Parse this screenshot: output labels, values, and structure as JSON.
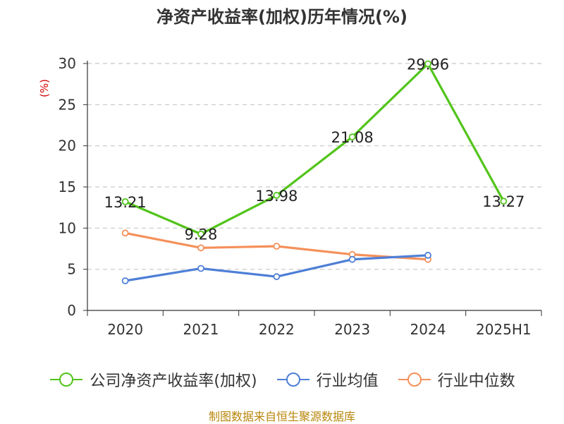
{
  "chart_data": {
    "type": "line",
    "title": "净资产收益率(加权)历年情况(%)",
    "ylabel": "(%)",
    "xlabel": "",
    "categories": [
      "2020",
      "2021",
      "2022",
      "2023",
      "2024",
      "2025H1"
    ],
    "ylim": [
      0,
      30
    ],
    "yticks": [
      0,
      5,
      10,
      15,
      20,
      25,
      30
    ],
    "grid": true,
    "legend_position": "bottom",
    "series": [
      {
        "name": "公司净资产收益率(加权)",
        "color": "#52c41a",
        "values": [
          13.21,
          9.28,
          13.98,
          21.08,
          29.96,
          13.27
        ],
        "labels": [
          "13.21",
          "9.28",
          "13.98",
          "21.08",
          "29.96",
          "13.27"
        ]
      },
      {
        "name": "行业均值",
        "color": "#4e7fd6",
        "values": [
          3.6,
          5.1,
          4.1,
          6.2,
          6.7,
          null
        ]
      },
      {
        "name": "行业中位数",
        "color": "#f5905a",
        "values": [
          9.4,
          7.6,
          7.8,
          6.8,
          6.2,
          null
        ]
      }
    ]
  },
  "footer": {
    "source": "制图数据来自恒生聚源数据库"
  }
}
